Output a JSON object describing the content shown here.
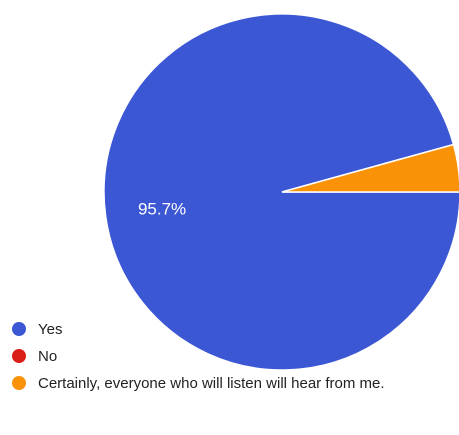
{
  "chart_data": {
    "type": "pie",
    "slices": [
      {
        "label": "Yes",
        "percent": 95.7,
        "color": "#3c57d4",
        "shown_label": "95.7%"
      },
      {
        "label": "No",
        "percent": 0.0,
        "color": "#d91e18",
        "shown_label": ""
      },
      {
        "label": "Certainly, everyone who will listen will hear from me.",
        "percent": 4.3,
        "color": "#fa9208",
        "shown_label": ""
      }
    ],
    "legend_position": "bottom-left"
  }
}
